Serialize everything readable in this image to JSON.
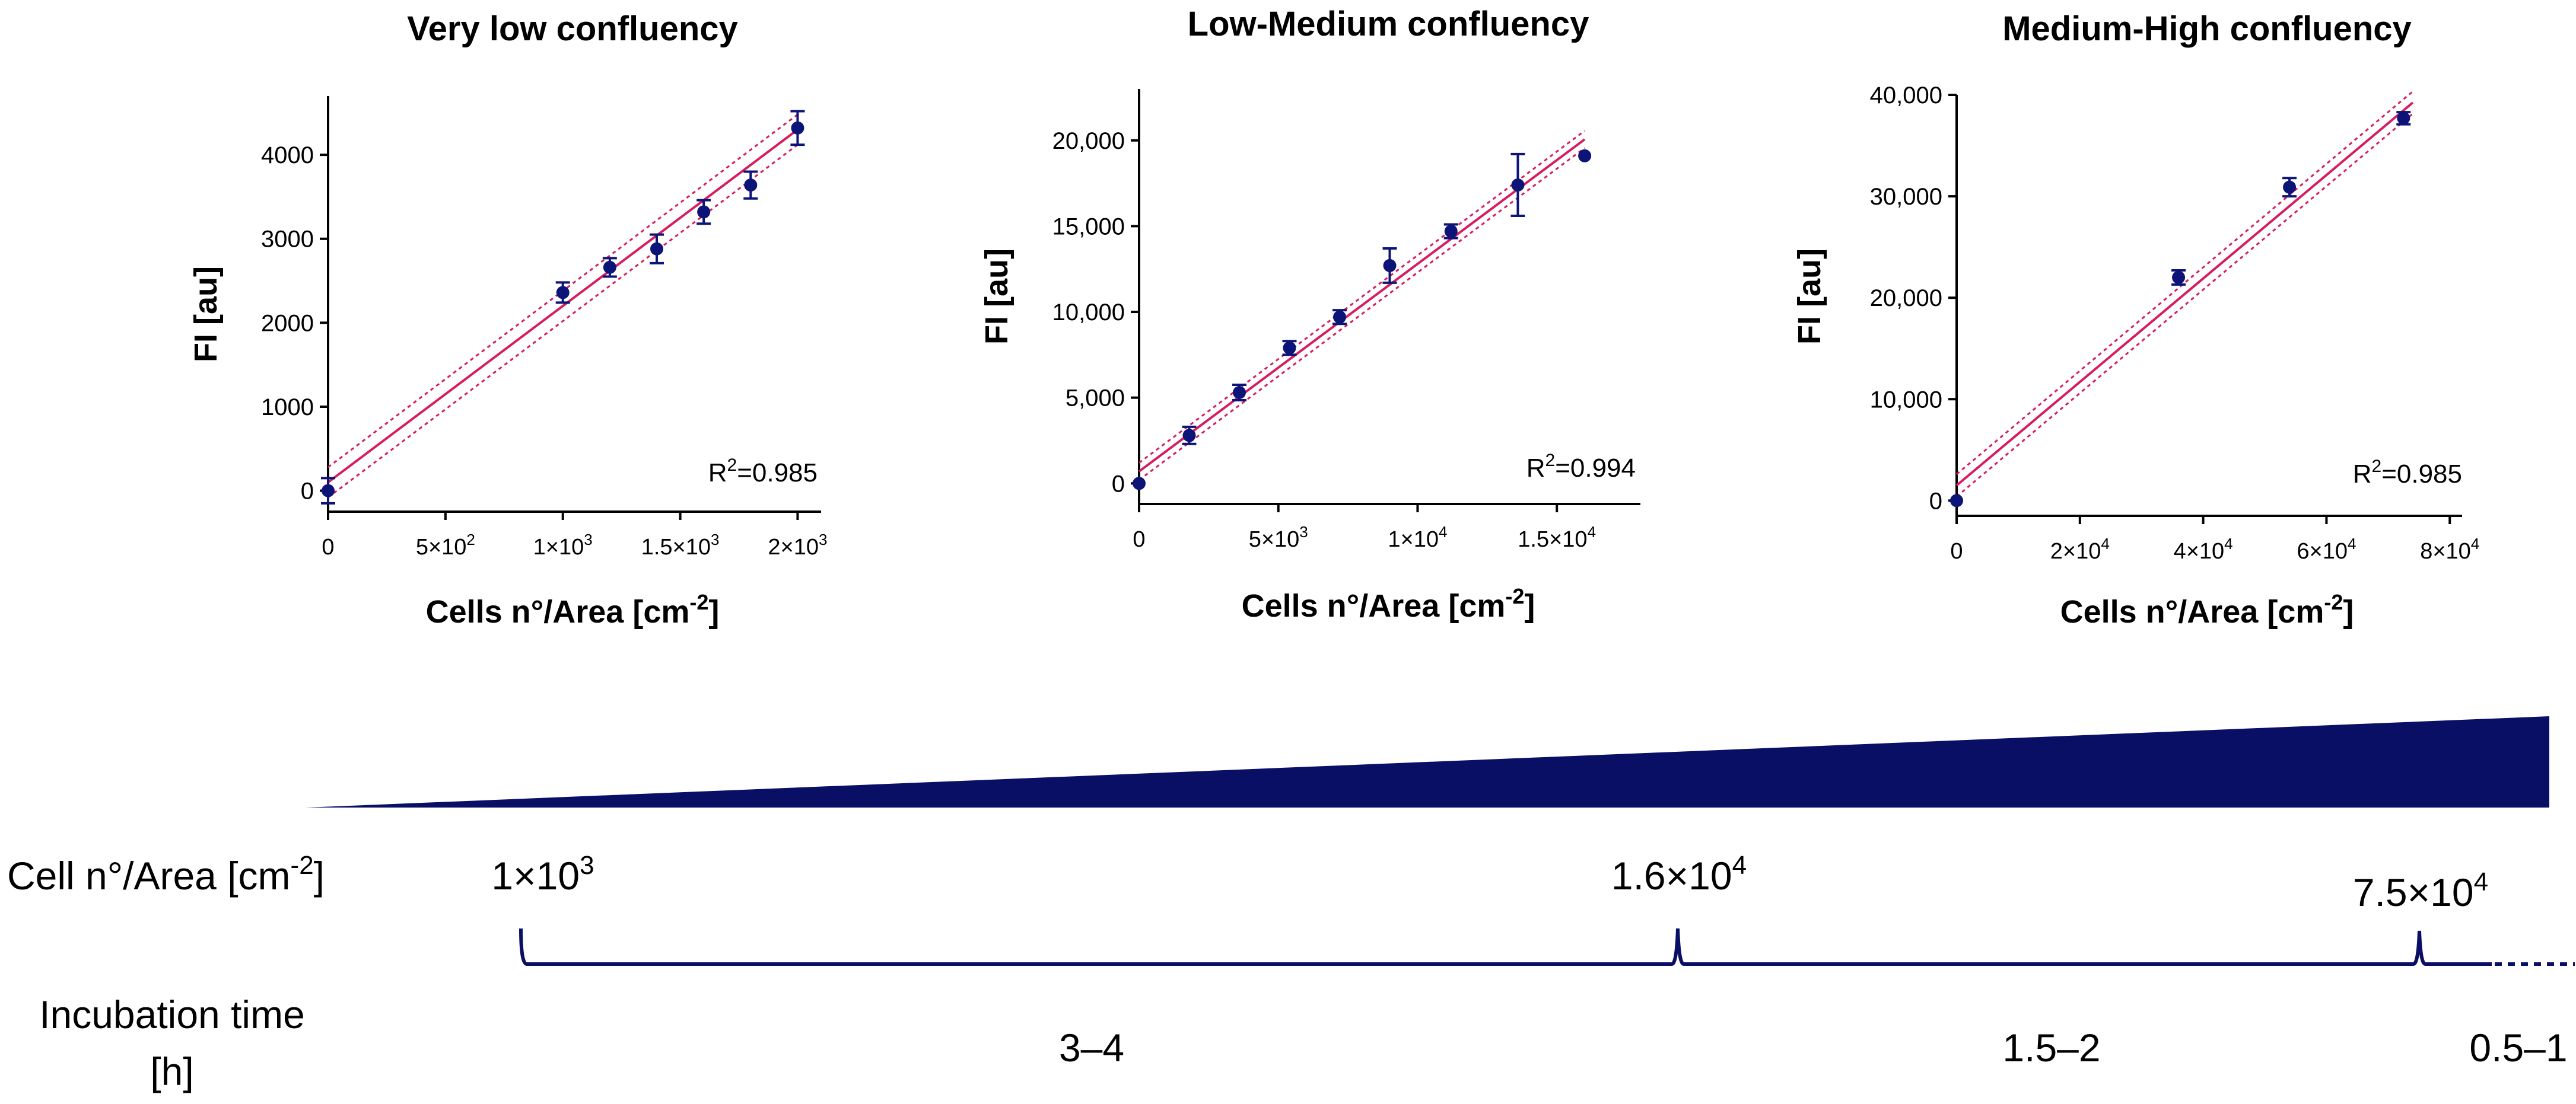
{
  "chart_data": [
    {
      "type": "scatter",
      "title": "Very low confluency",
      "xlabel_main": "Cells n°/Area [cm",
      "xlabel_sup": "-2",
      "xlabel_end": "]",
      "ylabel": "FI [au]",
      "xlim": [
        0,
        2100
      ],
      "ylim": [
        -250,
        4700
      ],
      "xticks": [
        0,
        500,
        1000,
        1500,
        2000
      ],
      "xtick_mantissa": [
        "0",
        "5×10",
        "1×10",
        "1.5×10",
        "2×10"
      ],
      "xtick_exp": [
        "",
        "2",
        "3",
        "3",
        "3"
      ],
      "yticks": [
        0,
        1000,
        2000,
        3000,
        4000
      ],
      "ytick_labels": [
        "0",
        "1000",
        "2000",
        "3000",
        "4000"
      ],
      "points": [
        {
          "x": 0,
          "y": 0,
          "err": 150
        },
        {
          "x": 1000,
          "y": 2360,
          "err": 120
        },
        {
          "x": 1200,
          "y": 2660,
          "err": 110
        },
        {
          "x": 1400,
          "y": 2880,
          "err": 170
        },
        {
          "x": 1600,
          "y": 3320,
          "err": 140
        },
        {
          "x": 1800,
          "y": 3640,
          "err": 160
        },
        {
          "x": 2000,
          "y": 4320,
          "err": 200
        }
      ],
      "fit": {
        "slope": 2.1,
        "intercept": 100,
        "band": 180,
        "x_range": [
          0,
          2000
        ]
      },
      "r2_prefix": "R",
      "r2_sup": "2",
      "r2_value": "=0.985"
    },
    {
      "type": "scatter",
      "title": "Low-Medium confluency",
      "xlabel_main": "Cells n°/Area [cm",
      "xlabel_sup": "-2",
      "xlabel_end": "]",
      "ylabel": "FI [au]",
      "xlim": [
        0,
        18000
      ],
      "ylim": [
        -1200,
        23000
      ],
      "xticks": [
        0,
        5000,
        10000,
        15000
      ],
      "xtick_mantissa": [
        "0",
        "5×10",
        "1×10",
        "1.5×10"
      ],
      "xtick_exp": [
        "",
        "3",
        "4",
        "4"
      ],
      "yticks": [
        0,
        5000,
        10000,
        15000,
        20000
      ],
      "ytick_labels": [
        "0",
        "5,000",
        "10,000",
        "15,000",
        "20,000"
      ],
      "points": [
        {
          "x": 0,
          "y": 0,
          "err": 0
        },
        {
          "x": 1800,
          "y": 2800,
          "err": 500
        },
        {
          "x": 3600,
          "y": 5300,
          "err": 450
        },
        {
          "x": 5400,
          "y": 7900,
          "err": 400
        },
        {
          "x": 7200,
          "y": 9700,
          "err": 400
        },
        {
          "x": 9000,
          "y": 12700,
          "err": 1000
        },
        {
          "x": 11200,
          "y": 14700,
          "err": 400
        },
        {
          "x": 13600,
          "y": 17400,
          "err": 1800
        },
        {
          "x": 16000,
          "y": 19100,
          "err": 0
        }
      ],
      "fit": {
        "slope": 1.21,
        "intercept": 700,
        "band": 500,
        "x_range": [
          0,
          16000
        ]
      },
      "r2_prefix": "R",
      "r2_sup": "2",
      "r2_value": "=0.994"
    },
    {
      "type": "scatter",
      "title": "Medium-High confluency",
      "xlabel_main": "Cells n°/Area [cm",
      "xlabel_sup": "-2",
      "xlabel_end": "]",
      "ylabel": "FI [au]",
      "xlim": [
        0,
        82000
      ],
      "ylim": [
        -1500,
        40000
      ],
      "xticks": [
        0,
        20000,
        40000,
        60000,
        80000
      ],
      "xtick_mantissa": [
        "0",
        "2×10",
        "4×10",
        "6×10",
        "8×10"
      ],
      "xtick_exp": [
        "",
        "4",
        "4",
        "4",
        "4"
      ],
      "yticks": [
        0,
        10000,
        20000,
        30000,
        40000
      ],
      "ytick_labels": [
        "0",
        "10,000",
        "20,000",
        "30,000",
        "40,000"
      ],
      "points": [
        {
          "x": 0,
          "y": 0,
          "err": 0
        },
        {
          "x": 36000,
          "y": 22000,
          "err": 700
        },
        {
          "x": 54000,
          "y": 30900,
          "err": 900
        },
        {
          "x": 72500,
          "y": 37700,
          "err": 600
        }
      ],
      "fit": {
        "slope": 0.51,
        "intercept": 1500,
        "band": 1100,
        "x_range": [
          0,
          74000
        ]
      },
      "r2_prefix": "R",
      "r2_sup": "2",
      "r2_value": "=0.985"
    }
  ],
  "timeline": {
    "cell_label_main": "Cell n°/Area [cm",
    "cell_label_sup": "-2",
    "cell_label_end": "]",
    "incubation_label_line1": "Incubation time",
    "incubation_label_line2": "[h]",
    "markers": [
      {
        "mantissa": "1×10",
        "exp": "3"
      },
      {
        "mantissa": "1.6×10",
        "exp": "4"
      },
      {
        "mantissa": "7.5×10",
        "exp": "4"
      }
    ],
    "times": [
      "3–4",
      "1.5–2",
      "0.5–1"
    ]
  },
  "colors": {
    "points": "#0d1478",
    "fit": "#d81b60",
    "wedge": "#0a0f66",
    "axis": "#000000",
    "text": "#000000"
  }
}
